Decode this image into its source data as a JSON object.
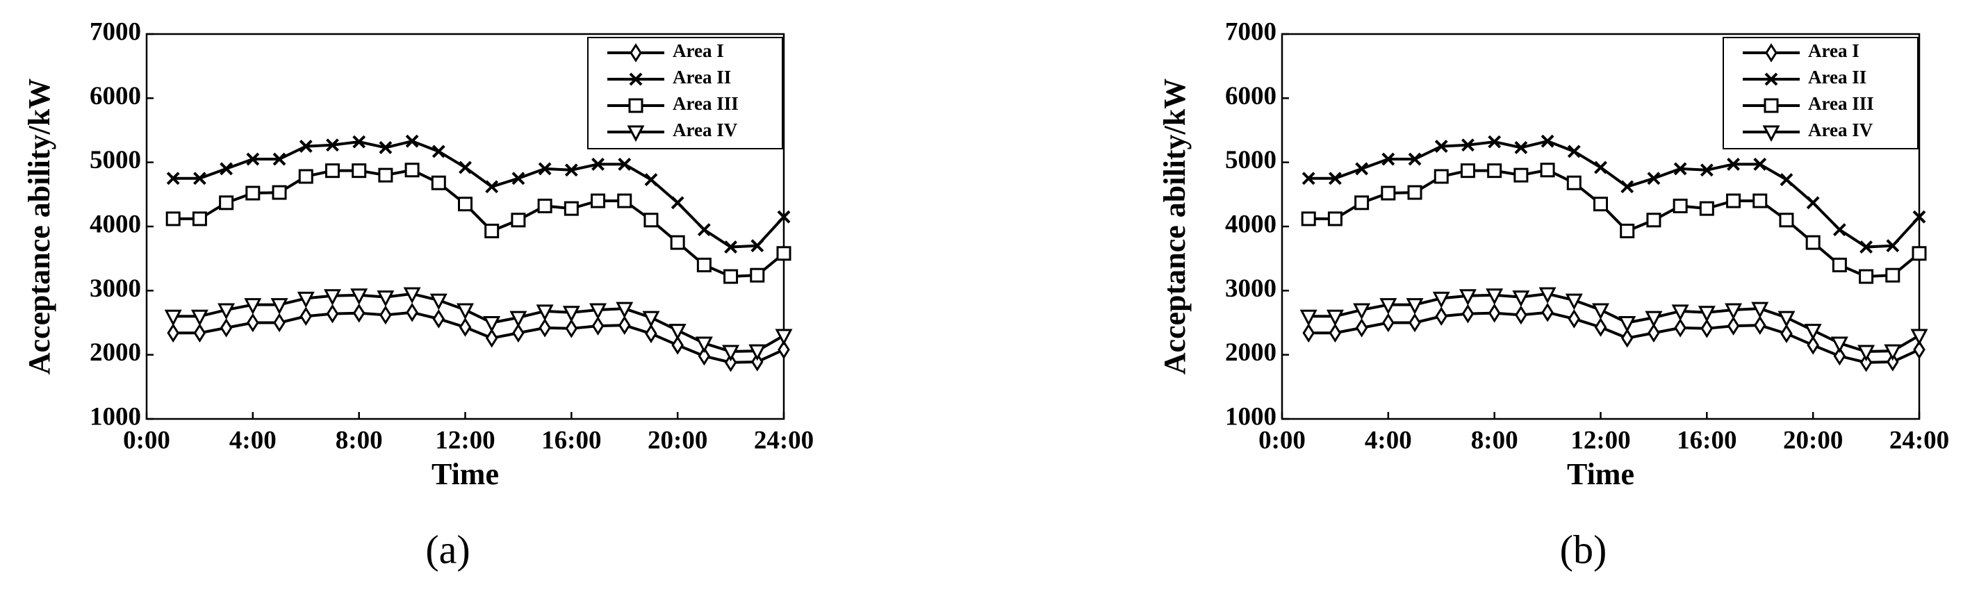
{
  "chart_data": [
    {
      "type": "line",
      "panel_label": "(a)",
      "xlabel": "Time",
      "ylabel": "Acceptance ability/kW",
      "x": [
        1,
        2,
        3,
        4,
        5,
        6,
        7,
        8,
        9,
        10,
        11,
        12,
        13,
        14,
        15,
        16,
        17,
        18,
        19,
        20,
        21,
        22,
        23,
        24
      ],
      "xlim": [
        0,
        24
      ],
      "xticks": [
        {
          "value": 0,
          "label": "0:00"
        },
        {
          "value": 4,
          "label": "4:00"
        },
        {
          "value": 8,
          "label": "8:00"
        },
        {
          "value": 12,
          "label": "12:00"
        },
        {
          "value": 16,
          "label": "16:00"
        },
        {
          "value": 20,
          "label": "20:00"
        },
        {
          "value": 24,
          "label": "24:00"
        }
      ],
      "ylim": [
        1000,
        7000
      ],
      "yticks": [
        1000,
        2000,
        3000,
        4000,
        5000,
        6000,
        7000
      ],
      "legend": "upper right",
      "series": [
        {
          "name": "Area I",
          "color": "#000000",
          "marker": "diamond",
          "values": [
            2340,
            2340,
            2420,
            2500,
            2500,
            2600,
            2640,
            2650,
            2620,
            2660,
            2560,
            2430,
            2260,
            2340,
            2420,
            2410,
            2450,
            2460,
            2330,
            2150,
            1980,
            1880,
            1890,
            2080
          ]
        },
        {
          "name": "Area II",
          "color": "#000000",
          "marker": "x",
          "values": [
            4750,
            4750,
            4900,
            5050,
            5050,
            5250,
            5270,
            5320,
            5230,
            5330,
            5170,
            4920,
            4620,
            4750,
            4900,
            4880,
            4970,
            4970,
            4730,
            4370,
            3950,
            3680,
            3700,
            4150
          ]
        },
        {
          "name": "Area III",
          "color": "#000000",
          "marker": "square",
          "values": [
            4120,
            4120,
            4370,
            4520,
            4530,
            4780,
            4870,
            4870,
            4800,
            4880,
            4680,
            4350,
            3930,
            4100,
            4320,
            4280,
            4400,
            4400,
            4100,
            3750,
            3400,
            3220,
            3240,
            3580
          ]
        },
        {
          "name": "Area IV",
          "color": "#000000",
          "marker": "triangle-down",
          "values": [
            2600,
            2600,
            2700,
            2780,
            2780,
            2880,
            2920,
            2930,
            2900,
            2950,
            2850,
            2700,
            2500,
            2580,
            2680,
            2660,
            2700,
            2720,
            2580,
            2380,
            2180,
            2050,
            2060,
            2300
          ]
        }
      ]
    },
    {
      "type": "line",
      "panel_label": "(b)",
      "xlabel": "Time",
      "ylabel": "Acceptance ability/kW",
      "x": [
        1,
        2,
        3,
        4,
        5,
        6,
        7,
        8,
        9,
        10,
        11,
        12,
        13,
        14,
        15,
        16,
        17,
        18,
        19,
        20,
        21,
        22,
        23,
        24
      ],
      "xlim": [
        0,
        24
      ],
      "xticks": [
        {
          "value": 0,
          "label": "0:00"
        },
        {
          "value": 4,
          "label": "4:00"
        },
        {
          "value": 8,
          "label": "8:00"
        },
        {
          "value": 12,
          "label": "12:00"
        },
        {
          "value": 16,
          "label": "16:00"
        },
        {
          "value": 20,
          "label": "20:00"
        },
        {
          "value": 24,
          "label": "24:00"
        }
      ],
      "ylim": [
        1000,
        7000
      ],
      "yticks": [
        1000,
        2000,
        3000,
        4000,
        5000,
        6000,
        7000
      ],
      "legend": "upper right",
      "series": [
        {
          "name": "Area I",
          "color": "#000000",
          "marker": "diamond",
          "values": [
            2340,
            2340,
            2420,
            2500,
            2500,
            2600,
            2640,
            2650,
            2620,
            2660,
            2560,
            2430,
            2260,
            2340,
            2420,
            2410,
            2450,
            2460,
            2330,
            2150,
            1980,
            1880,
            1890,
            2080
          ]
        },
        {
          "name": "Area II",
          "color": "#000000",
          "marker": "x",
          "values": [
            4750,
            4750,
            4900,
            5050,
            5050,
            5250,
            5270,
            5320,
            5230,
            5330,
            5170,
            4920,
            4620,
            4750,
            4900,
            4880,
            4970,
            4970,
            4730,
            4370,
            3950,
            3680,
            3700,
            4150
          ]
        },
        {
          "name": "Area III",
          "color": "#000000",
          "marker": "square",
          "values": [
            4120,
            4120,
            4370,
            4520,
            4530,
            4780,
            4870,
            4870,
            4800,
            4880,
            4680,
            4350,
            3930,
            4100,
            4320,
            4280,
            4400,
            4400,
            4100,
            3750,
            3400,
            3220,
            3240,
            3580
          ]
        },
        {
          "name": "Area IV",
          "color": "#000000",
          "marker": "triangle-down",
          "values": [
            2600,
            2600,
            2700,
            2780,
            2780,
            2880,
            2920,
            2930,
            2900,
            2950,
            2850,
            2700,
            2500,
            2580,
            2680,
            2660,
            2700,
            2720,
            2580,
            2380,
            2180,
            2050,
            2060,
            2300
          ]
        }
      ]
    }
  ]
}
